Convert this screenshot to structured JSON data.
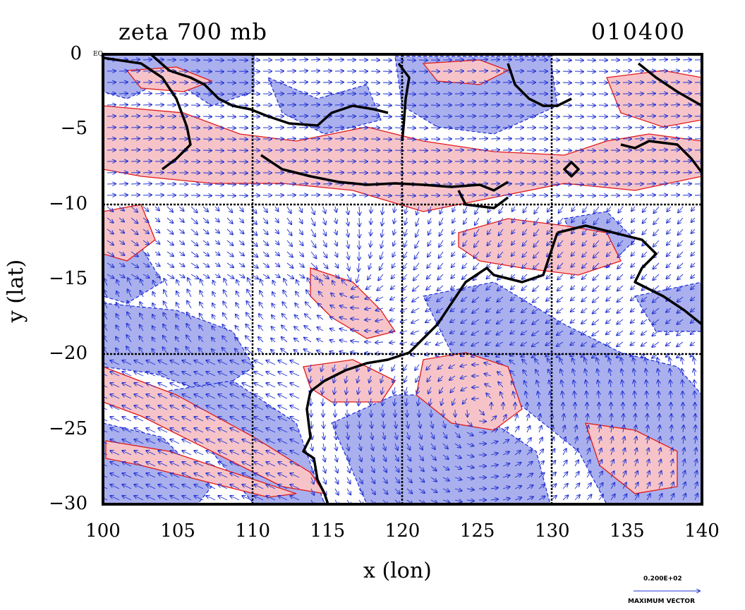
{
  "header": {
    "title": "zeta 700 mb",
    "timestamp": "010400"
  },
  "axes": {
    "xlabel": "x (lon)",
    "ylabel": "y (lat)",
    "x_ticks": [
      "100",
      "105",
      "110",
      "115",
      "120",
      "125",
      "130",
      "135",
      "140"
    ],
    "y_ticks": [
      "0",
      "−5",
      "−10",
      "−15",
      "−20",
      "−25",
      "−30"
    ],
    "equator_mark": "EQ"
  },
  "legend": {
    "value": "0.200E+02",
    "label": "MAXIMUM VECTOR"
  },
  "map": {
    "lon_range": [
      100,
      140
    ],
    "lat_range": [
      -30,
      0
    ],
    "grid_lon": [
      110,
      120,
      130
    ],
    "grid_lat": [
      -10,
      -20
    ],
    "colors": {
      "negative_fill": "#aab0ee",
      "positive_fill": "#f6c4c8",
      "negative_contour": "#1a2ad8",
      "positive_contour": "#e01818",
      "coastline": "#000000",
      "vector": "#2030d0"
    },
    "icons": [
      "vector-arrow-icon"
    ]
  }
}
